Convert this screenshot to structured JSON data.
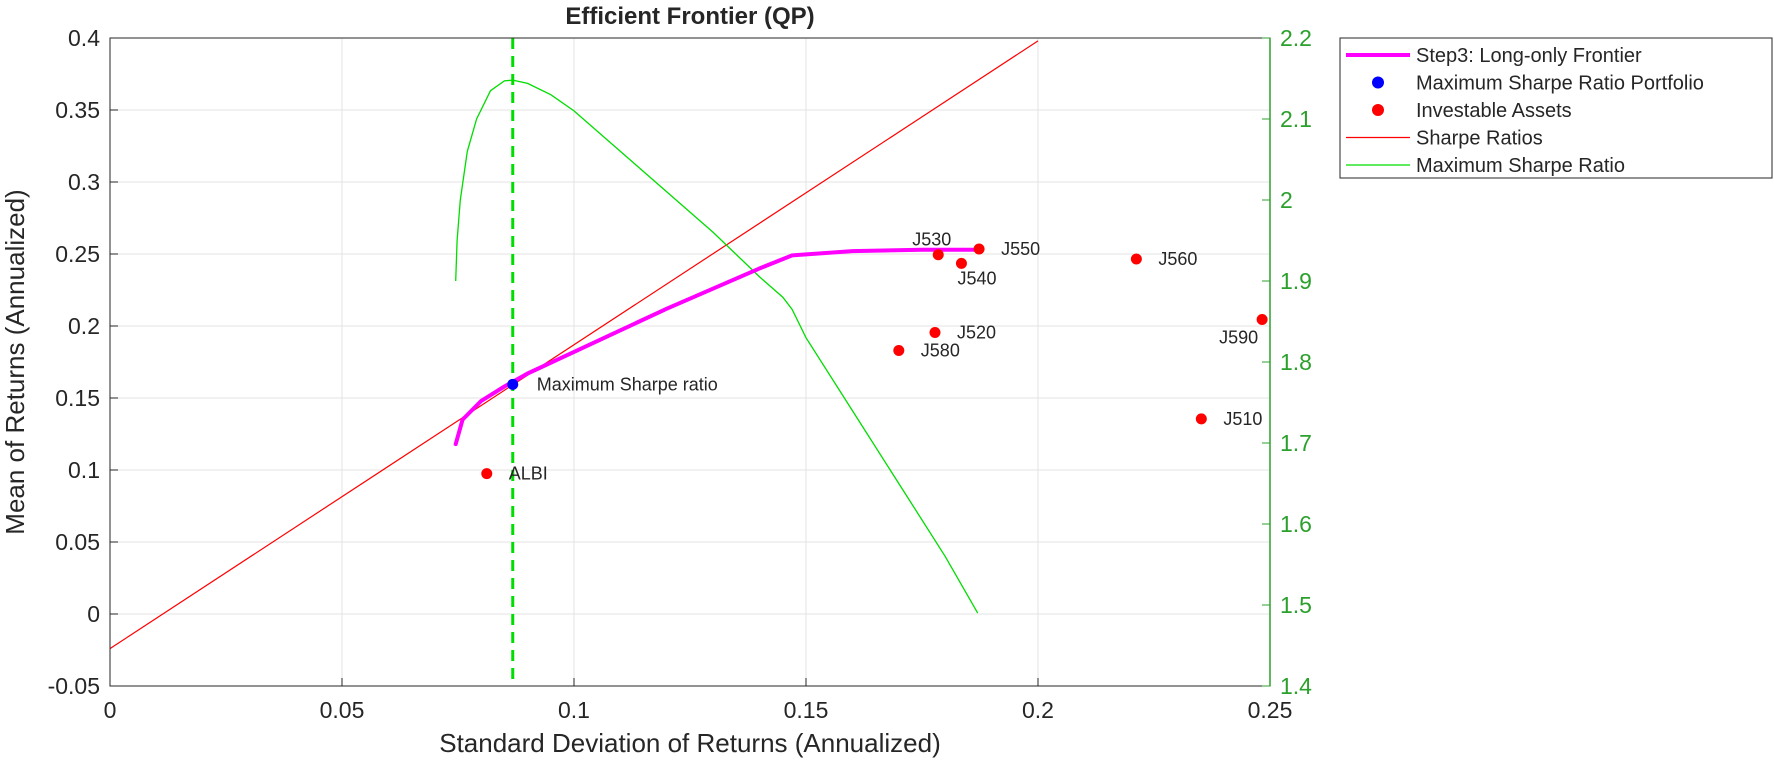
{
  "chart_data": {
    "type": "scatter",
    "title": "Efficient Frontier (QP)",
    "xlabel": "Standard Deviation of Returns (Annualized)",
    "ylabel": "Mean of Returns (Annualized)",
    "xlim": [
      0,
      0.25
    ],
    "ylim": [
      -0.05,
      0.4
    ],
    "y2lim": [
      1.4,
      2.2
    ],
    "xticks": [
      "0",
      "0.05",
      "0.1",
      "0.15",
      "0.2",
      "0.25"
    ],
    "yticks": [
      "-0.05",
      "0",
      "0.05",
      "0.1",
      "0.15",
      "0.2",
      "0.25",
      "0.3",
      "0.35",
      "0.4"
    ],
    "y2ticks": [
      "1.4",
      "1.5",
      "1.6",
      "1.7",
      "1.8",
      "1.9",
      "2",
      "2.1",
      "2.2"
    ],
    "grid": true,
    "legend_position": "outside-top-right",
    "colors": {
      "frontier": "#ff00ff",
      "max_sharpe_point": "#0000ff",
      "assets": "#ff0000",
      "sharpe_line": "#ff0000",
      "max_sharpe_curve": "#00dd00",
      "right_axis": "#2ca02c"
    },
    "series": [
      {
        "name": "Step3: Long-only Frontier",
        "kind": "line",
        "x": [
          0.0745,
          0.076,
          0.08,
          0.085,
          0.09,
          0.1,
          0.11,
          0.12,
          0.13,
          0.14,
          0.147,
          0.16,
          0.175,
          0.188
        ],
        "y": [
          0.118,
          0.135,
          0.148,
          0.158,
          0.167,
          0.182,
          0.197,
          0.212,
          0.226,
          0.24,
          0.249,
          0.252,
          0.253,
          0.253
        ]
      },
      {
        "name": "Maximum Sharpe Ratio Portfolio",
        "kind": "points",
        "points": [
          {
            "x": 0.0868,
            "y": 0.1595,
            "label": "Maximum Sharpe ratio"
          }
        ]
      },
      {
        "name": "Investable Assets",
        "kind": "points",
        "points": [
          {
            "x": 0.0812,
            "y": 0.0975,
            "label": "ALBI",
            "pos": "right"
          },
          {
            "x": 0.1785,
            "y": 0.2495,
            "label": "J530",
            "pos": "above"
          },
          {
            "x": 0.1873,
            "y": 0.2535,
            "label": "J550",
            "pos": "right"
          },
          {
            "x": 0.1835,
            "y": 0.2435,
            "label": "J540",
            "pos": "below"
          },
          {
            "x": 0.2212,
            "y": 0.2465,
            "label": "J560",
            "pos": "right"
          },
          {
            "x": 0.1778,
            "y": 0.1955,
            "label": "J520",
            "pos": "right"
          },
          {
            "x": 0.17,
            "y": 0.183,
            "label": "J580",
            "pos": "right"
          },
          {
            "x": 0.2483,
            "y": 0.2045,
            "label": "J590",
            "pos": "below-left"
          },
          {
            "x": 0.2352,
            "y": 0.1355,
            "label": "J510",
            "pos": "right"
          }
        ]
      },
      {
        "name": "Sharpe Ratios",
        "kind": "line",
        "x": [
          0,
          0.2
        ],
        "y": [
          -0.024,
          0.398
        ]
      },
      {
        "name": "Maximum Sharpe Ratio",
        "kind": "line",
        "axis": "right",
        "x": [
          0.0745,
          0.0748,
          0.0755,
          0.077,
          0.079,
          0.082,
          0.085,
          0.0868,
          0.09,
          0.095,
          0.1,
          0.11,
          0.12,
          0.13,
          0.14,
          0.145,
          0.147,
          0.15,
          0.16,
          0.17,
          0.18,
          0.187
        ],
        "y": [
          1.9,
          1.95,
          2.0,
          2.06,
          2.1,
          2.135,
          2.147,
          2.148,
          2.144,
          2.13,
          2.11,
          2.06,
          2.01,
          1.96,
          1.905,
          1.88,
          1.865,
          1.83,
          1.74,
          1.65,
          1.56,
          1.49
        ]
      }
    ],
    "max_sharpe_vline_x": 0.0868
  }
}
